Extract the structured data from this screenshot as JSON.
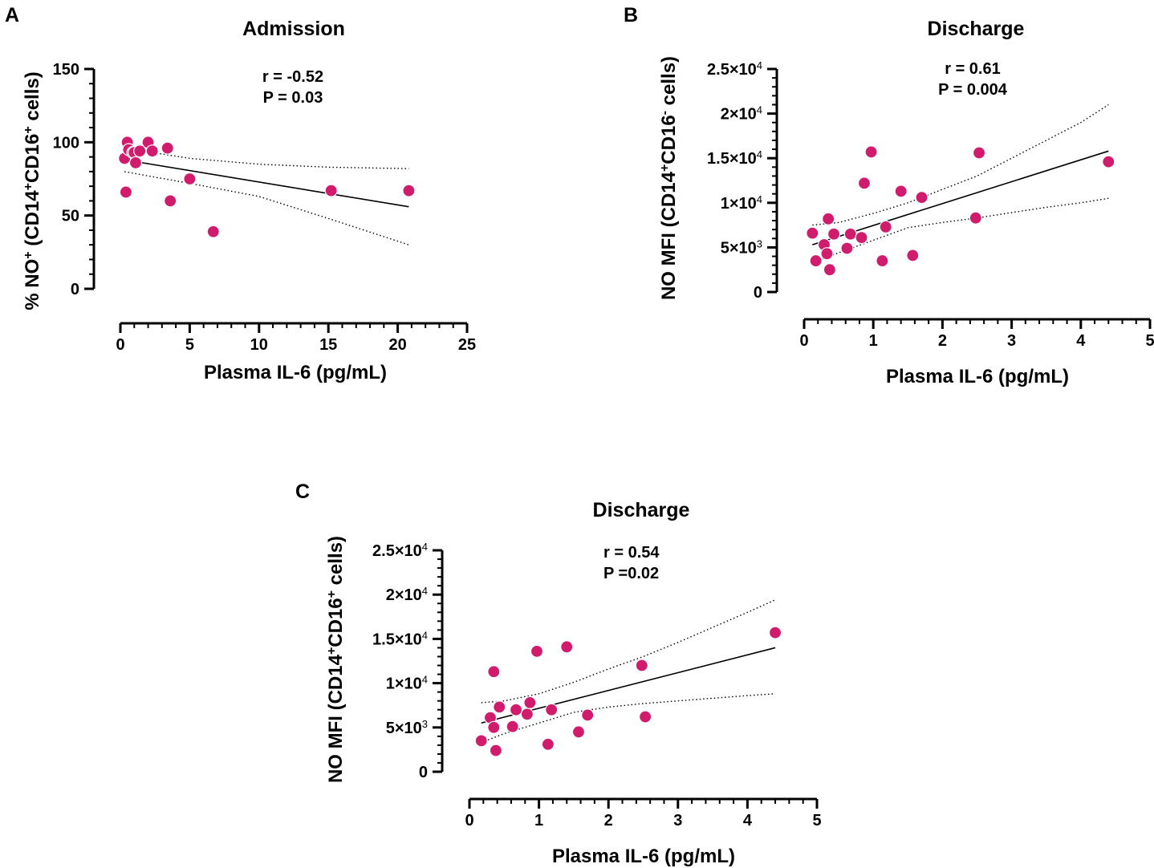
{
  "colors": {
    "point": "#d11c6e",
    "line": "#000000"
  },
  "chart_data": [
    {
      "id": "A",
      "type": "scatter",
      "title": "Admission",
      "stats": [
        "r = -0.52",
        "P = 0.03"
      ],
      "xlabel": "Plasma IL-6 (pg/mL)",
      "ylabel": {
        "parts": [
          {
            "text": "% NO"
          },
          {
            "text": "+",
            "sup": true
          },
          {
            "text": " (CD14"
          },
          {
            "text": "+",
            "sup": true
          },
          {
            "text": "CD16"
          },
          {
            "text": "+",
            "sup": true
          },
          {
            "text": " cells)"
          }
        ]
      },
      "xlim": [
        0,
        25
      ],
      "ylim": [
        0,
        150
      ],
      "xticks": [
        {
          "v": 0,
          "label": "0"
        },
        {
          "v": 5,
          "label": "5"
        },
        {
          "v": 10,
          "label": "10"
        },
        {
          "v": 15,
          "label": "15"
        },
        {
          "v": 20,
          "label": "20"
        },
        {
          "v": 25,
          "label": "25"
        }
      ],
      "yticks": [
        {
          "v": 0,
          "label": "0"
        },
        {
          "v": 50,
          "label": "50"
        },
        {
          "v": 100,
          "label": "100"
        },
        {
          "v": 150,
          "label": "150"
        }
      ],
      "x_minor_step": 1,
      "y_minor_step": 10,
      "points": [
        [
          0.3,
          89
        ],
        [
          0.5,
          100
        ],
        [
          0.6,
          95
        ],
        [
          0.9,
          93
        ],
        [
          1.0,
          93
        ],
        [
          1.1,
          86
        ],
        [
          1.4,
          94
        ],
        [
          2.0,
          100
        ],
        [
          2.3,
          94
        ],
        [
          3.4,
          96
        ],
        [
          0.4,
          66
        ],
        [
          3.6,
          60
        ],
        [
          5.0,
          75
        ],
        [
          6.7,
          39
        ],
        [
          15.2,
          67
        ],
        [
          20.8,
          67
        ]
      ],
      "fit": {
        "x": [
          0.3,
          20.8
        ],
        "y": [
          88,
          56
        ]
      },
      "ci_upper": [
        [
          0.3,
          97
        ],
        [
          2,
          93.5
        ],
        [
          5,
          89
        ],
        [
          10,
          85
        ],
        [
          15,
          83
        ],
        [
          20.8,
          82
        ]
      ],
      "ci_lower": [
        [
          0.3,
          80
        ],
        [
          2,
          77
        ],
        [
          5,
          72
        ],
        [
          10,
          63
        ],
        [
          15,
          48
        ],
        [
          20.8,
          30
        ]
      ]
    },
    {
      "id": "B",
      "type": "scatter",
      "title": "Discharge",
      "stats": [
        "r = 0.61",
        "P = 0.004"
      ],
      "xlabel": "Plasma IL-6 (pg/mL)",
      "ylabel": {
        "parts": [
          {
            "text": "NO MFI (CD14"
          },
          {
            "text": "+",
            "sup": true
          },
          {
            "text": "CD16"
          },
          {
            "text": "-",
            "sup": true
          },
          {
            "text": " cells)"
          }
        ]
      },
      "xlim": [
        0,
        5
      ],
      "ylim": [
        0,
        25000
      ],
      "xticks": [
        {
          "v": 0,
          "label": "0"
        },
        {
          "v": 1,
          "label": "1"
        },
        {
          "v": 2,
          "label": "2"
        },
        {
          "v": 3,
          "label": "3"
        },
        {
          "v": 4,
          "label": "4"
        },
        {
          "v": 5,
          "label": "5"
        }
      ],
      "yticks": [
        {
          "v": 0,
          "label": "0"
        },
        {
          "v": 5000,
          "label": "5×10",
          "exp": "3"
        },
        {
          "v": 10000,
          "label": "1×10",
          "exp": "4"
        },
        {
          "v": 15000,
          "label": "1.5×10",
          "exp": "4"
        },
        {
          "v": 20000,
          "label": "2×10",
          "exp": "4"
        },
        {
          "v": 25000,
          "label": "2.5×10",
          "exp": "4"
        }
      ],
      "x_minor_step": 0.2,
      "y_minor_step": 1000,
      "points": [
        [
          0.12,
          6600
        ],
        [
          0.17,
          3500
        ],
        [
          0.29,
          5300
        ],
        [
          0.33,
          4300
        ],
        [
          0.35,
          8200
        ],
        [
          0.37,
          2500
        ],
        [
          0.43,
          6500
        ],
        [
          0.62,
          4900
        ],
        [
          0.67,
          6500
        ],
        [
          0.83,
          6100
        ],
        [
          0.87,
          12200
        ],
        [
          0.97,
          15700
        ],
        [
          1.13,
          3500
        ],
        [
          1.18,
          7300
        ],
        [
          1.4,
          11300
        ],
        [
          1.57,
          4100
        ],
        [
          1.7,
          10600
        ],
        [
          2.48,
          8300
        ],
        [
          2.53,
          15600
        ],
        [
          4.4,
          14600
        ]
      ],
      "fit": {
        "x": [
          0.12,
          4.4
        ],
        "y": [
          5300,
          15800
        ]
      },
      "ci_upper": [
        [
          0.12,
          7500
        ],
        [
          0.5,
          7800
        ],
        [
          1.0,
          8800
        ],
        [
          1.5,
          10000
        ],
        [
          2.0,
          11500
        ],
        [
          2.5,
          13000
        ],
        [
          3.0,
          15000
        ],
        [
          3.5,
          17000
        ],
        [
          4.0,
          19000
        ],
        [
          4.4,
          21000
        ]
      ],
      "ci_lower": [
        [
          0.12,
          3300
        ],
        [
          0.5,
          4400
        ],
        [
          1.0,
          5800
        ],
        [
          1.5,
          7200
        ],
        [
          2.0,
          7800
        ],
        [
          2.5,
          8300
        ],
        [
          3.0,
          8900
        ],
        [
          3.5,
          9500
        ],
        [
          4.0,
          10000
        ],
        [
          4.4,
          10500
        ]
      ]
    },
    {
      "id": "C",
      "type": "scatter",
      "title": "Discharge",
      "stats": [
        "r  = 0.54",
        "P =0.02"
      ],
      "xlabel": "Plasma IL-6 (pg/mL)",
      "ylabel": {
        "parts": [
          {
            "text": "NO MFI (CD14"
          },
          {
            "text": "+",
            "sup": true
          },
          {
            "text": "CD16"
          },
          {
            "text": "+",
            "sup": true
          },
          {
            "text": " cells)"
          }
        ]
      },
      "xlim": [
        0,
        5
      ],
      "ylim": [
        0,
        25000
      ],
      "xticks": [
        {
          "v": 0,
          "label": "0"
        },
        {
          "v": 1,
          "label": "1"
        },
        {
          "v": 2,
          "label": "2"
        },
        {
          "v": 3,
          "label": "3"
        },
        {
          "v": 4,
          "label": "4"
        },
        {
          "v": 5,
          "label": "5"
        }
      ],
      "yticks": [
        {
          "v": 0,
          "label": "0"
        },
        {
          "v": 5000,
          "label": "5×10",
          "exp": "3"
        },
        {
          "v": 10000,
          "label": "1×10",
          "exp": "4"
        },
        {
          "v": 15000,
          "label": "1.5×10",
          "exp": "4"
        },
        {
          "v": 20000,
          "label": "2×10",
          "exp": "4"
        },
        {
          "v": 25000,
          "label": "2.5×10",
          "exp": "4"
        }
      ],
      "x_minor_step": 0.2,
      "y_minor_step": 1000,
      "points": [
        [
          0.17,
          3500
        ],
        [
          0.3,
          6100
        ],
        [
          0.35,
          5000
        ],
        [
          0.35,
          11300
        ],
        [
          0.38,
          2400
        ],
        [
          0.43,
          7300
        ],
        [
          0.62,
          5100
        ],
        [
          0.67,
          7000
        ],
        [
          0.83,
          6500
        ],
        [
          0.87,
          7800
        ],
        [
          0.97,
          13600
        ],
        [
          1.13,
          3100
        ],
        [
          1.18,
          7000
        ],
        [
          1.4,
          14100
        ],
        [
          1.57,
          4500
        ],
        [
          1.7,
          6400
        ],
        [
          2.48,
          12000
        ],
        [
          2.53,
          6200
        ],
        [
          4.4,
          15700
        ]
      ],
      "fit": {
        "x": [
          0.17,
          4.4
        ],
        "y": [
          5500,
          14000
        ]
      },
      "ci_upper": [
        [
          0.17,
          7800
        ],
        [
          0.5,
          8000
        ],
        [
          1.0,
          8800
        ],
        [
          1.5,
          10100
        ],
        [
          2.0,
          11600
        ],
        [
          2.5,
          13000
        ],
        [
          3.0,
          14600
        ],
        [
          3.5,
          16300
        ],
        [
          4.0,
          18000
        ],
        [
          4.4,
          19400
        ]
      ],
      "ci_lower": [
        [
          0.17,
          3300
        ],
        [
          0.5,
          4300
        ],
        [
          1.0,
          5500
        ],
        [
          1.5,
          6700
        ],
        [
          2.0,
          7300
        ],
        [
          2.5,
          7700
        ],
        [
          3.0,
          8000
        ],
        [
          3.5,
          8300
        ],
        [
          4.0,
          8600
        ],
        [
          4.4,
          8800
        ]
      ]
    }
  ]
}
